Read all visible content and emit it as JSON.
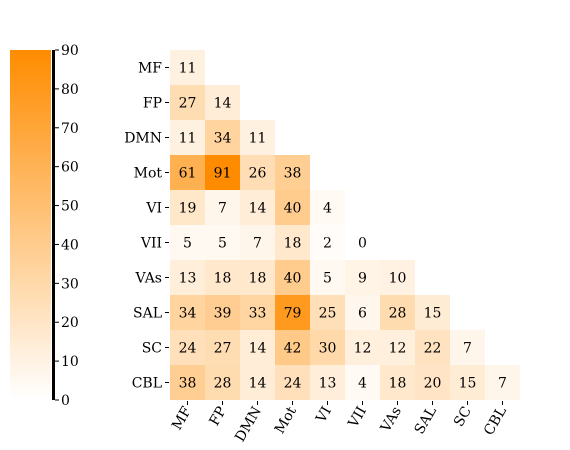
{
  "chart_data": {
    "type": "heatmap",
    "title": "",
    "xlabel": "",
    "ylabel": "",
    "categories": [
      "MF",
      "FP",
      "DMN",
      "Mot",
      "VI",
      "VII",
      "VAs",
      "SAL",
      "SC",
      "CBL"
    ],
    "layout": "lower-triangle",
    "values": [
      [
        11
      ],
      [
        27,
        14
      ],
      [
        11,
        34,
        11
      ],
      [
        61,
        91,
        26,
        38
      ],
      [
        19,
        7,
        14,
        40,
        4
      ],
      [
        5,
        5,
        7,
        18,
        2,
        0
      ],
      [
        13,
        18,
        18,
        40,
        5,
        9,
        10
      ],
      [
        34,
        39,
        33,
        79,
        25,
        6,
        28,
        15
      ],
      [
        24,
        27,
        14,
        42,
        30,
        12,
        12,
        22,
        7
      ],
      [
        38,
        28,
        14,
        24,
        13,
        4,
        18,
        20,
        15,
        7
      ]
    ],
    "colorbar": {
      "min": 0,
      "max": 90,
      "ticks": [
        0,
        10,
        20,
        30,
        40,
        50,
        60,
        70,
        80,
        90
      ],
      "low_color": "#ffffff",
      "high_color": "#ff8c00",
      "position": "left"
    }
  }
}
